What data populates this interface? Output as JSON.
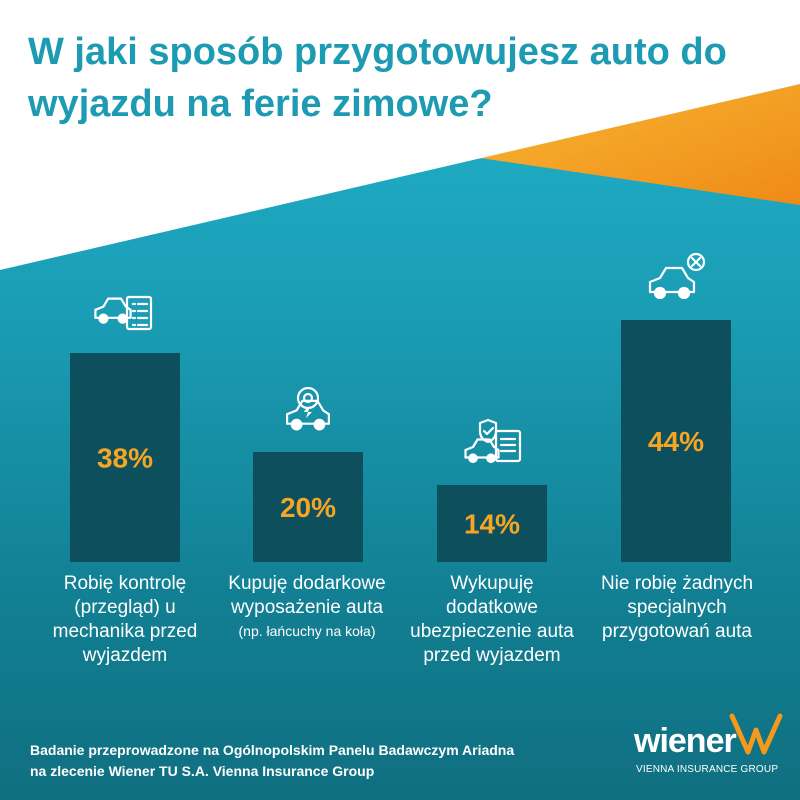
{
  "title": "W jaki sposób przygotowujesz auto do wyjazdu na ferie zimowe?",
  "chart_data": {
    "type": "bar",
    "categories": [
      "Robię kontrolę (przegląd) u mechanika przed wyjazdem",
      "Kupuję dodarkowe wyposażenie auta",
      "Wykupuję dodatkowe ubezpieczenie auta przed wyjazdem",
      "Nie robię żadnych specjalnych przygotowań auta"
    ],
    "category_notes": [
      "",
      "(np. łańcuchy na koła)",
      "",
      ""
    ],
    "values": [
      38,
      20,
      14,
      44
    ],
    "value_labels": [
      "38%",
      "20%",
      "14%",
      "44%"
    ],
    "ylim": [
      0,
      50
    ],
    "grid": false,
    "icons": [
      "car-checklist-icon",
      "car-service-gear-icon",
      "car-insurance-document-icon",
      "car-cancel-icon"
    ]
  },
  "footnote": {
    "line1": "Badanie przeprowadzone na Ogólnopolskim Panelu Badawczym Ariadna",
    "line2": "na zlecenie Wiener TU S.A. Vienna Insurance Group"
  },
  "logo": {
    "word": "wiener",
    "subtitle": "VIENNA INSURANCE GROUP"
  },
  "colors": {
    "bar": "#0e4f5e",
    "value_text": "#f5a623",
    "title": "#1d9bb3",
    "accent_orange": "#f39a1d",
    "background_top": "#22b6cf",
    "background_bottom": "#0f6f80"
  }
}
